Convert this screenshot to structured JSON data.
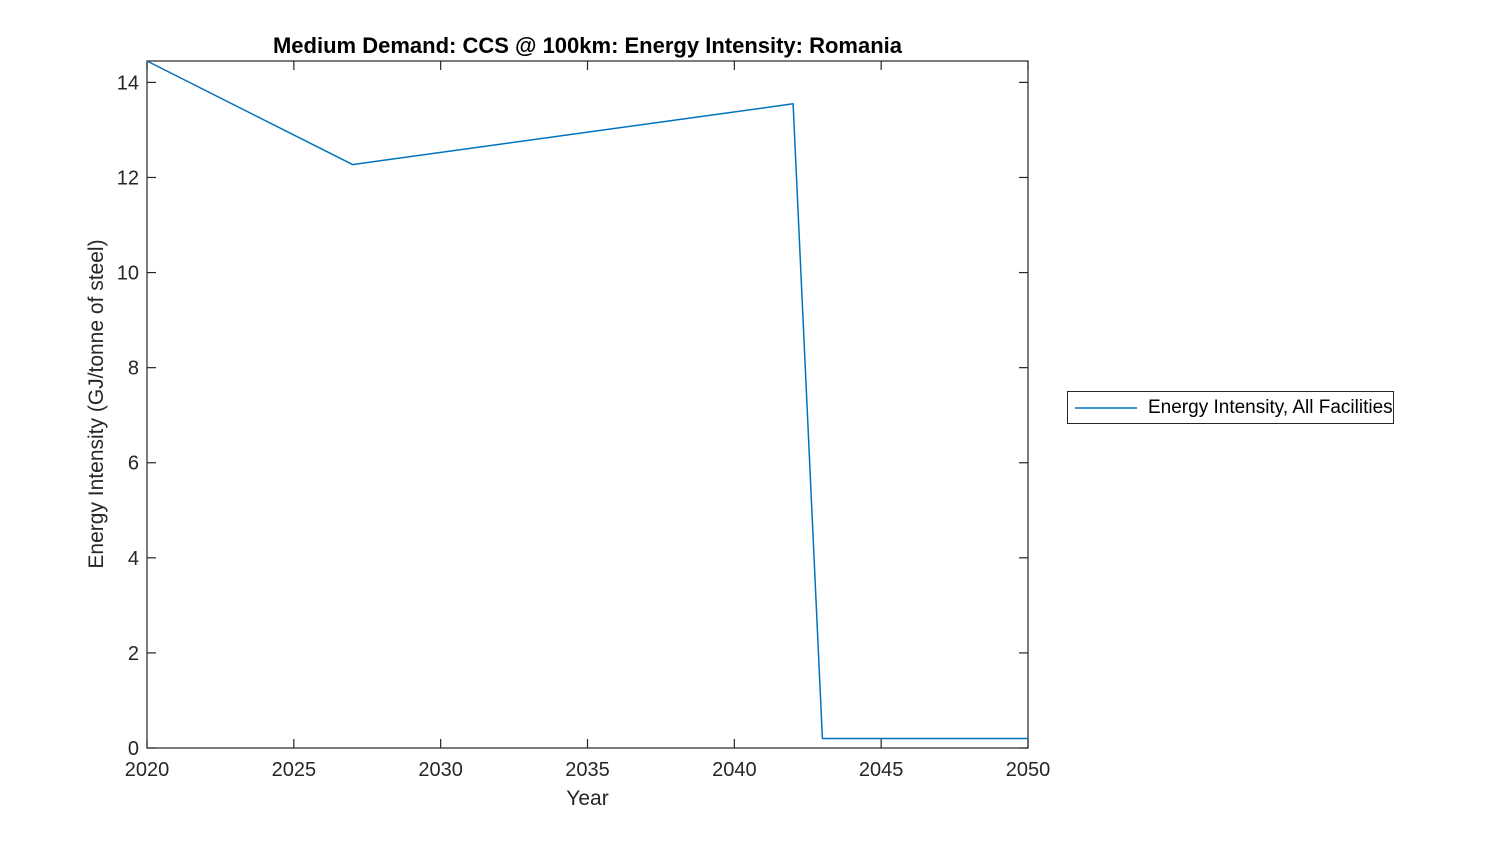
{
  "chart_data": {
    "type": "line",
    "title": "Medium Demand: CCS @ 100km: Energy Intensity: Romania",
    "xlabel": "Year",
    "ylabel": "Energy Intensity (GJ/tonne of steel)",
    "xlim": [
      2020,
      2050
    ],
    "ylim": [
      0,
      14.45
    ],
    "xticks": [
      2020,
      2025,
      2030,
      2035,
      2040,
      2045,
      2050
    ],
    "yticks": [
      0,
      2,
      4,
      6,
      8,
      10,
      12,
      14
    ],
    "grid": false,
    "box": true,
    "tick_direction": "in",
    "legend_position": "outside-right",
    "line_color": "#0072BD",
    "axis_color": "#262626",
    "background_color": "#ffffff",
    "series": [
      {
        "name": "Energy Intensity, All Facilities",
        "x": [
          2020,
          2027,
          2042,
          2043,
          2050
        ],
        "y": [
          14.45,
          12.27,
          13.55,
          0.2,
          0.2
        ]
      }
    ]
  }
}
